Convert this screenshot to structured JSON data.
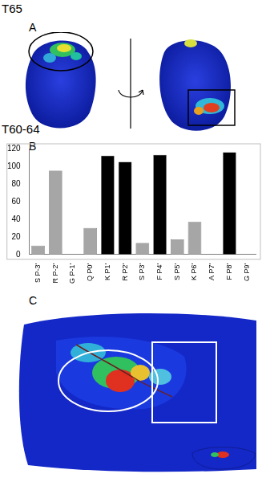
{
  "chart_data": {
    "type": "bar",
    "categories": [
      "S P-3'",
      "R P-2'",
      "G P-1'",
      "Q P0'",
      "K P1'",
      "R P2'",
      "S P3'",
      "F P4'",
      "S P5'",
      "K P6'",
      "A P7'",
      "F P8'",
      "G P9'"
    ],
    "values": [
      10,
      95,
      0,
      30,
      112,
      105,
      13,
      113,
      17,
      37,
      0,
      116,
      0
    ],
    "colors": [
      "#a6a6a6",
      "#a6a6a6",
      "#a6a6a6",
      "#a6a6a6",
      "#000000",
      "#000000",
      "#a6a6a6",
      "#000000",
      "#a6a6a6",
      "#a6a6a6",
      "#a6a6a6",
      "#000000",
      "#a6a6a6"
    ],
    "ylim": [
      0,
      120
    ],
    "yticks": [
      0,
      20,
      40,
      60,
      80,
      100,
      120
    ],
    "grid": false
  },
  "figure": {
    "a_header": "T65",
    "a_label": "A",
    "b_header": "T60-64",
    "b_label": "B",
    "c_label": "C"
  }
}
